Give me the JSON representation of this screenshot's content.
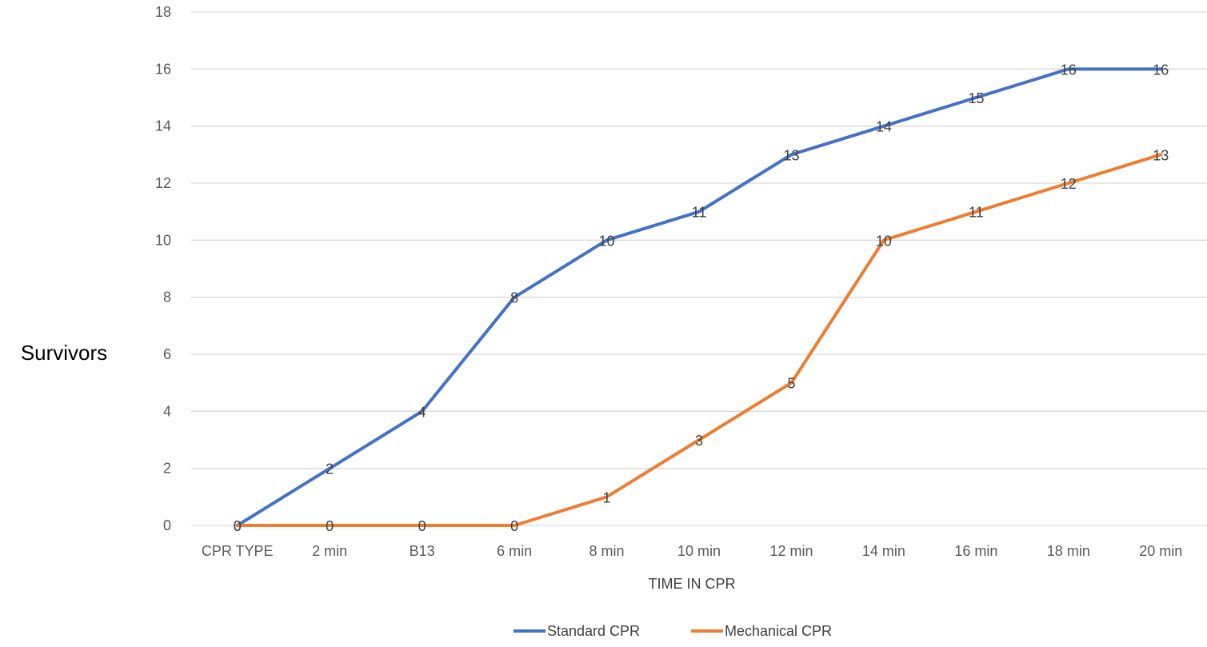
{
  "chart_data": {
    "type": "line",
    "title": "",
    "xlabel": "TIME IN CPR",
    "ylabel": "Survivors",
    "categories": [
      "CPR TYPE",
      "2 min",
      "B13",
      "6 min",
      "8 min",
      "10 min",
      "12 min",
      "14 min",
      "16 min",
      "18 min",
      "20 min"
    ],
    "ylim": [
      0,
      18
    ],
    "yticks": [
      0,
      2,
      4,
      6,
      8,
      10,
      12,
      14,
      16,
      18
    ],
    "grid": true,
    "legend_position": "bottom",
    "series": [
      {
        "name": "Standard CPR",
        "color": "#4472C4",
        "values": [
          0,
          2,
          4,
          8,
          10,
          11,
          13,
          14,
          15,
          16,
          16
        ]
      },
      {
        "name": "Mechanical CPR",
        "color": "#ED7D31",
        "values": [
          0,
          0,
          0,
          0,
          1,
          3,
          5,
          10,
          11,
          12,
          13
        ]
      }
    ]
  }
}
